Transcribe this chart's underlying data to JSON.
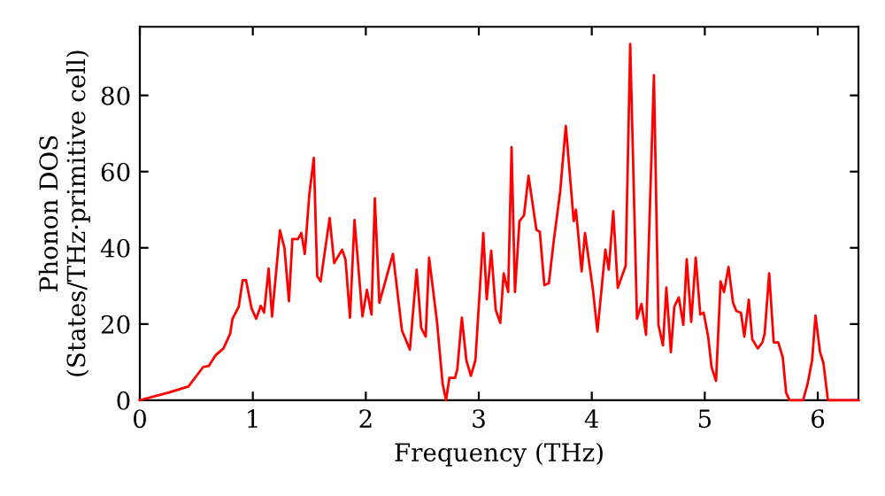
{
  "chart_data": {
    "type": "line",
    "xlabel": "Frequency (THz)",
    "ylabel": "Phonon DOS\n(States/THz·primitive cell)",
    "xlim": [
      0,
      6.36
    ],
    "ylim": [
      0,
      98
    ],
    "xticks": [
      0,
      1,
      2,
      3,
      4,
      5,
      6
    ],
    "yticks": [
      0,
      20,
      40,
      60,
      80
    ],
    "grid": false,
    "legend": false,
    "marker": "none",
    "line_style": "solid",
    "series": [
      {
        "color": "#ff0000",
        "x": [
          0,
          0.25,
          0.43,
          0.56,
          0.61,
          0.67,
          0.74,
          0.8,
          0.82,
          0.875,
          0.91,
          0.94,
          0.99,
          1.03,
          1.07,
          1.1,
          1.14,
          1.17,
          1.24,
          1.28,
          1.32,
          1.35,
          1.4,
          1.43,
          1.46,
          1.5,
          1.54,
          1.57,
          1.6,
          1.65,
          1.68,
          1.72,
          1.79,
          1.82,
          1.86,
          1.9,
          1.97,
          2.01,
          2.05,
          2.08,
          2.12,
          2.24,
          2.32,
          2.39,
          2.45,
          2.49,
          2.53,
          2.56,
          2.63,
          2.68,
          2.71,
          2.74,
          2.79,
          2.81,
          2.85,
          2.89,
          2.93,
          2.97,
          3.04,
          3.07,
          3.11,
          3.15,
          3.19,
          3.22,
          3.26,
          3.29,
          3.32,
          3.36,
          3.4,
          3.44,
          3.51,
          3.54,
          3.58,
          3.62,
          3.66,
          3.72,
          3.77,
          3.84,
          3.86,
          3.91,
          3.94,
          4.01,
          4.05,
          4.12,
          4.15,
          4.19,
          4.23,
          4.3,
          4.34,
          4.4,
          4.44,
          4.48,
          4.55,
          4.59,
          4.63,
          4.66,
          4.7,
          4.73,
          4.77,
          4.81,
          4.84,
          4.88,
          4.92,
          4.96,
          4.99,
          5.03,
          5.06,
          5.1,
          5.14,
          5.17,
          5.21,
          5.25,
          5.28,
          5.32,
          5.35,
          5.39,
          5.42,
          5.47,
          5.51,
          5.53,
          5.57,
          5.61,
          5.65,
          5.69,
          5.72,
          5.75,
          5.87,
          5.91,
          5.95,
          5.98,
          6.02,
          6.05,
          6.09,
          6.36
        ],
        "values": [
          0,
          2,
          3.6,
          8.7,
          9,
          11.8,
          13.6,
          17.5,
          21.4,
          24.5,
          31.5,
          31.5,
          24,
          21.4,
          24.8,
          23,
          34.6,
          22,
          44.6,
          40,
          26,
          42.3,
          42.3,
          43.9,
          38.4,
          54,
          63.6,
          32.6,
          31.2,
          41.6,
          47.8,
          36,
          39.5,
          37,
          21.7,
          47.3,
          22,
          29,
          22.5,
          53,
          25.6,
          38.4,
          18.3,
          13.3,
          34.3,
          19,
          16.7,
          37.4,
          20.6,
          4.3,
          0,
          5.9,
          5.9,
          8.2,
          21.7,
          10.5,
          6.4,
          10.5,
          43.9,
          26.5,
          39.2,
          23.7,
          20.3,
          33.3,
          28.4,
          66.4,
          28.4,
          47,
          48.5,
          58.9,
          44.7,
          44.2,
          30.2,
          30.7,
          41,
          54.7,
          72,
          47,
          50,
          33.8,
          43.9,
          29,
          18,
          39.5,
          34.3,
          49.6,
          29.5,
          35.3,
          93.5,
          21.4,
          25.3,
          17.2,
          85.3,
          19.8,
          14.4,
          29.6,
          12.6,
          24.5,
          27,
          19.8,
          37,
          20.6,
          37.4,
          22.5,
          23,
          16.7,
          8.7,
          5.1,
          31.2,
          28.4,
          35,
          25.6,
          23.4,
          23,
          16.7,
          26.4,
          16,
          13.6,
          15.2,
          17.5,
          33.3,
          15.2,
          15.2,
          11.3,
          2,
          0,
          0,
          4.3,
          10.5,
          22.2,
          12.6,
          9.8,
          0,
          0
        ]
      }
    ]
  }
}
